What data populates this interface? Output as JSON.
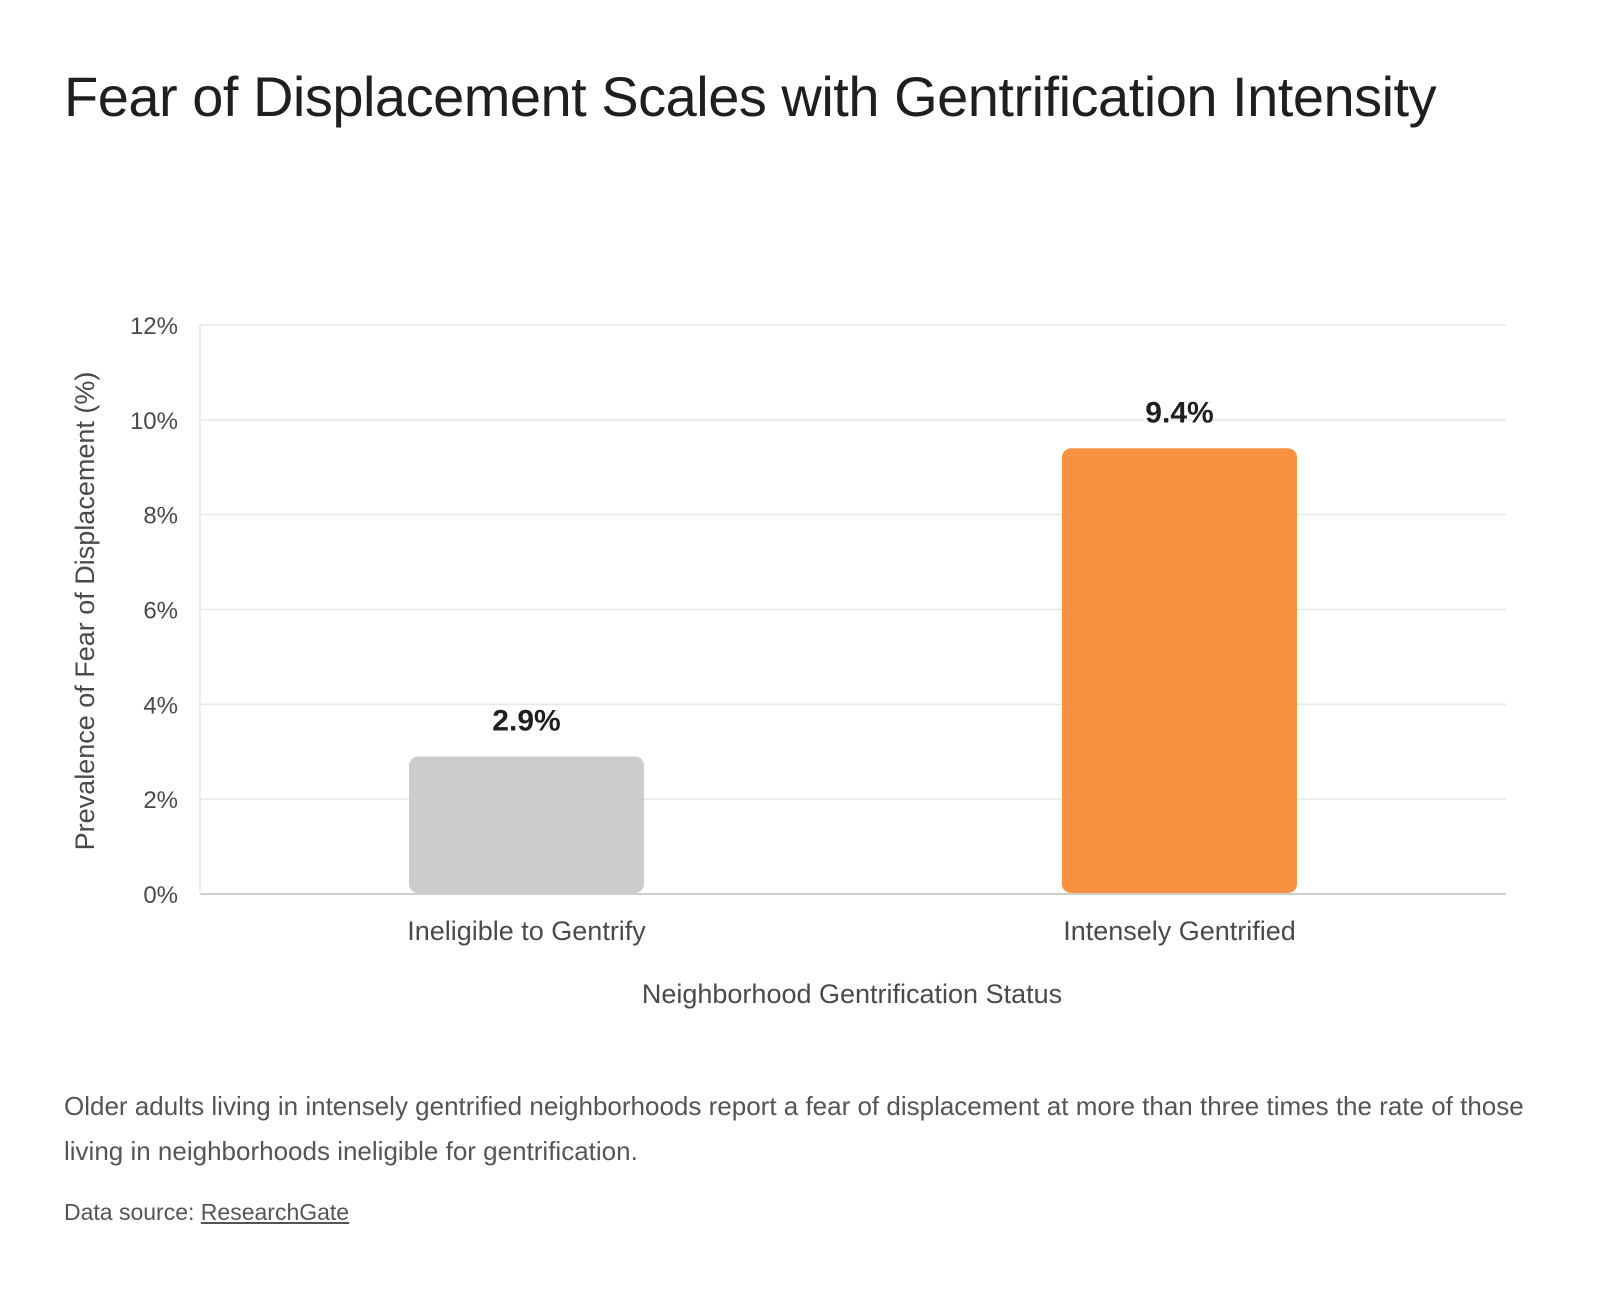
{
  "chart_data": {
    "type": "bar",
    "title": "Fear of Displacement Scales with Gentrification Intensity",
    "xlabel": "Neighborhood Gentrification Status",
    "ylabel": "Prevalence of Fear of Displacement (%)",
    "categories": [
      "Ineligible to Gentrify",
      "Intensely Gentrified"
    ],
    "values": [
      2.9,
      9.4
    ],
    "data_labels": [
      "2.9%",
      "9.4%"
    ],
    "bar_colors": [
      "#cccccc",
      "#f99240"
    ],
    "ylim": [
      0,
      12
    ],
    "yticks": [
      0,
      2,
      4,
      6,
      8,
      10,
      12
    ],
    "ytick_labels": [
      "0%",
      "2%",
      "4%",
      "6%",
      "8%",
      "10%",
      "12%"
    ],
    "grid": true,
    "legend": "none"
  },
  "caption": "Older adults living in intensely gentrified neighborhoods report a fear of displacement at more than three times the rate of those living in neighborhoods ineligible for gentrification.",
  "source": {
    "prefix": "Data source: ",
    "link_text": "ResearchGate"
  },
  "colors": {
    "gridline": "#e8e8e8",
    "axis": "#cfcfcf"
  }
}
